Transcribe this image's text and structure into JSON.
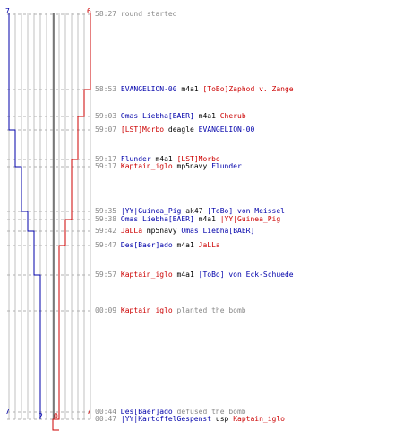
{
  "colors": {
    "blue": "#0000aa",
    "red": "#cc0000",
    "time": "#888888",
    "grid": "#c0c0c0",
    "center": "#606060"
  },
  "scores": {
    "blue_start": "7",
    "red_start": "6",
    "blue_end_top": "7",
    "red_end_top": "7",
    "blue_final": "2",
    "red_final": "0"
  },
  "events": [
    {
      "time": "58:27",
      "parts": [
        {
          "c": "c",
          "t": "round started"
        }
      ]
    },
    {
      "time": "58:53",
      "parts": [
        {
          "c": "b",
          "t": "EVANGELION-00"
        },
        {
          "c": "k",
          "t": "m4a1"
        },
        {
          "c": "r",
          "t": "[ToBo]Zaphod v. Zange"
        }
      ]
    },
    {
      "time": "59:03",
      "parts": [
        {
          "c": "b",
          "t": "Omas Liebha[BAER]"
        },
        {
          "c": "k",
          "t": "m4a1"
        },
        {
          "c": "r",
          "t": "Cherub"
        }
      ]
    },
    {
      "time": "59:07",
      "parts": [
        {
          "c": "r",
          "t": "[LST]Morbo"
        },
        {
          "c": "k",
          "t": "deagle"
        },
        {
          "c": "b",
          "t": "EVANGELION-00"
        }
      ]
    },
    {
      "time": "59:17",
      "parts": [
        {
          "c": "b",
          "t": "Flunder"
        },
        {
          "c": "k",
          "t": "m4a1"
        },
        {
          "c": "r",
          "t": "[LST]Morbo"
        }
      ]
    },
    {
      "time": "59:17",
      "parts": [
        {
          "c": "r",
          "t": "Kaptain_iglo"
        },
        {
          "c": "k",
          "t": "mp5navy"
        },
        {
          "c": "b",
          "t": "Flunder"
        }
      ]
    },
    {
      "time": "59:35",
      "parts": [
        {
          "c": "b",
          "t": "|YY|Guinea_Pig"
        },
        {
          "c": "k",
          "t": "ak47"
        },
        {
          "c": "b",
          "t": "[ToBo] von Meissel"
        }
      ]
    },
    {
      "time": "59:38",
      "parts": [
        {
          "c": "b",
          "t": "Omas Liebha[BAER]"
        },
        {
          "c": "k",
          "t": "m4a1"
        },
        {
          "c": "r",
          "t": "|YY|Guinea_Pig"
        }
      ]
    },
    {
      "time": "59:42",
      "parts": [
        {
          "c": "r",
          "t": "JaLLa"
        },
        {
          "c": "k",
          "t": "mp5navy"
        },
        {
          "c": "b",
          "t": "Omas Liebha[BAER]"
        }
      ]
    },
    {
      "time": "59:47",
      "parts": [
        {
          "c": "b",
          "t": "Des[Baer]ado"
        },
        {
          "c": "k",
          "t": "m4a1"
        },
        {
          "c": "r",
          "t": "JaLLa"
        }
      ]
    },
    {
      "time": "59:57",
      "parts": [
        {
          "c": "r",
          "t": "Kaptain_iglo"
        },
        {
          "c": "k",
          "t": "m4a1"
        },
        {
          "c": "b",
          "t": "[ToBo] von Eck-Schuede"
        }
      ]
    },
    {
      "time": "00:09",
      "parts": [
        {
          "c": "r",
          "t": "Kaptain_iglo"
        },
        {
          "c": "c",
          "t": "planted the bomb"
        }
      ]
    },
    {
      "time": "00:44",
      "parts": [
        {
          "c": "b",
          "t": "Des[Baer]ado"
        },
        {
          "c": "c",
          "t": "defused the bomb"
        }
      ]
    },
    {
      "time": "00:47",
      "parts": [
        {
          "c": "b",
          "t": "|YY|KartoffelGespenst"
        },
        {
          "c": "k",
          "t": "usp"
        },
        {
          "c": "r",
          "t": "Kaptain_iglo"
        }
      ]
    }
  ]
}
